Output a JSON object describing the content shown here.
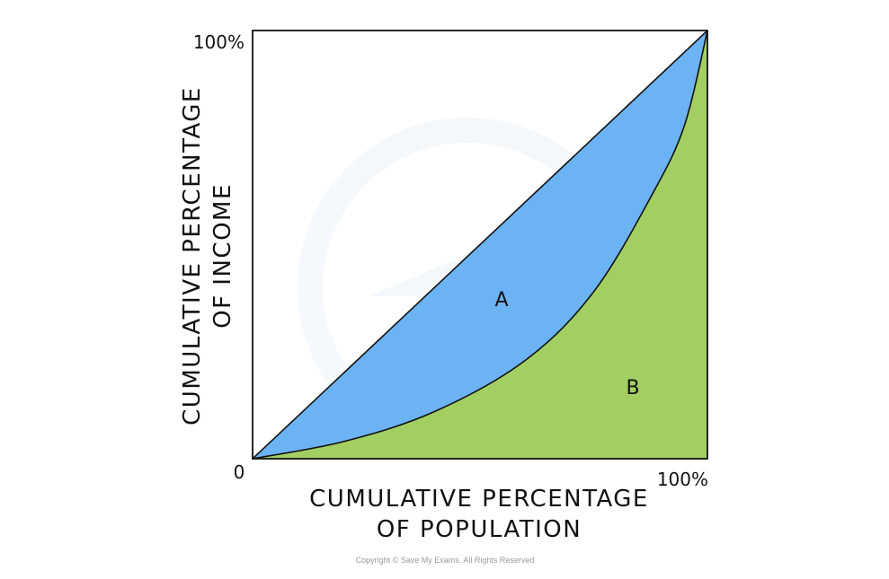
{
  "chart_data": {
    "type": "area",
    "xlabel_lines": [
      "CUMULATIVE PERCENTAGE",
      "OF POPULATION"
    ],
    "ylabel_lines": [
      "CUMULATIVE PERCENTAGE",
      "OF INCOME"
    ],
    "x_ticks": {
      "origin": "0",
      "max": "100%"
    },
    "y_ticks": {
      "max": "100%"
    },
    "xlim": [
      0,
      100
    ],
    "ylim": [
      0,
      100
    ],
    "regions": [
      {
        "label": "A",
        "color": "#6cb3f4"
      },
      {
        "label": "B",
        "color": "#a3cf62"
      }
    ],
    "line_of_equality": [
      [
        0,
        0
      ],
      [
        100,
        100
      ]
    ],
    "lorenz_curve": [
      [
        0,
        0
      ],
      [
        20,
        4
      ],
      [
        40,
        11
      ],
      [
        60,
        23
      ],
      [
        75,
        39
      ],
      [
        88,
        62
      ],
      [
        95,
        78
      ],
      [
        100,
        100
      ]
    ]
  },
  "copyright": "Copyright © Save My Exams. All Rights Reserved"
}
